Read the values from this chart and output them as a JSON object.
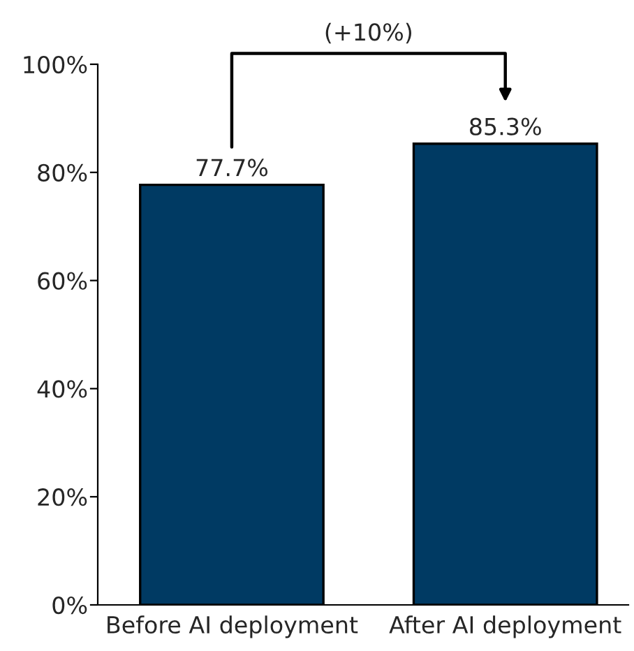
{
  "chart_data": {
    "type": "bar",
    "categories": [
      "Before AI deployment",
      "After AI deployment"
    ],
    "values": [
      77.7,
      85.3
    ],
    "value_labels": [
      "77.7%",
      "85.3%"
    ],
    "color": "#003a63",
    "ylim": [
      0,
      100
    ],
    "yticks": [
      {
        "value": 0,
        "label": "0%"
      },
      {
        "value": 20,
        "label": "20%"
      },
      {
        "value": 40,
        "label": "40%"
      },
      {
        "value": 60,
        "label": "60%"
      },
      {
        "value": 80,
        "label": "80%"
      },
      {
        "value": 100,
        "label": "100%"
      }
    ],
    "grid": false,
    "annotations": [
      "(+10%)"
    ]
  }
}
